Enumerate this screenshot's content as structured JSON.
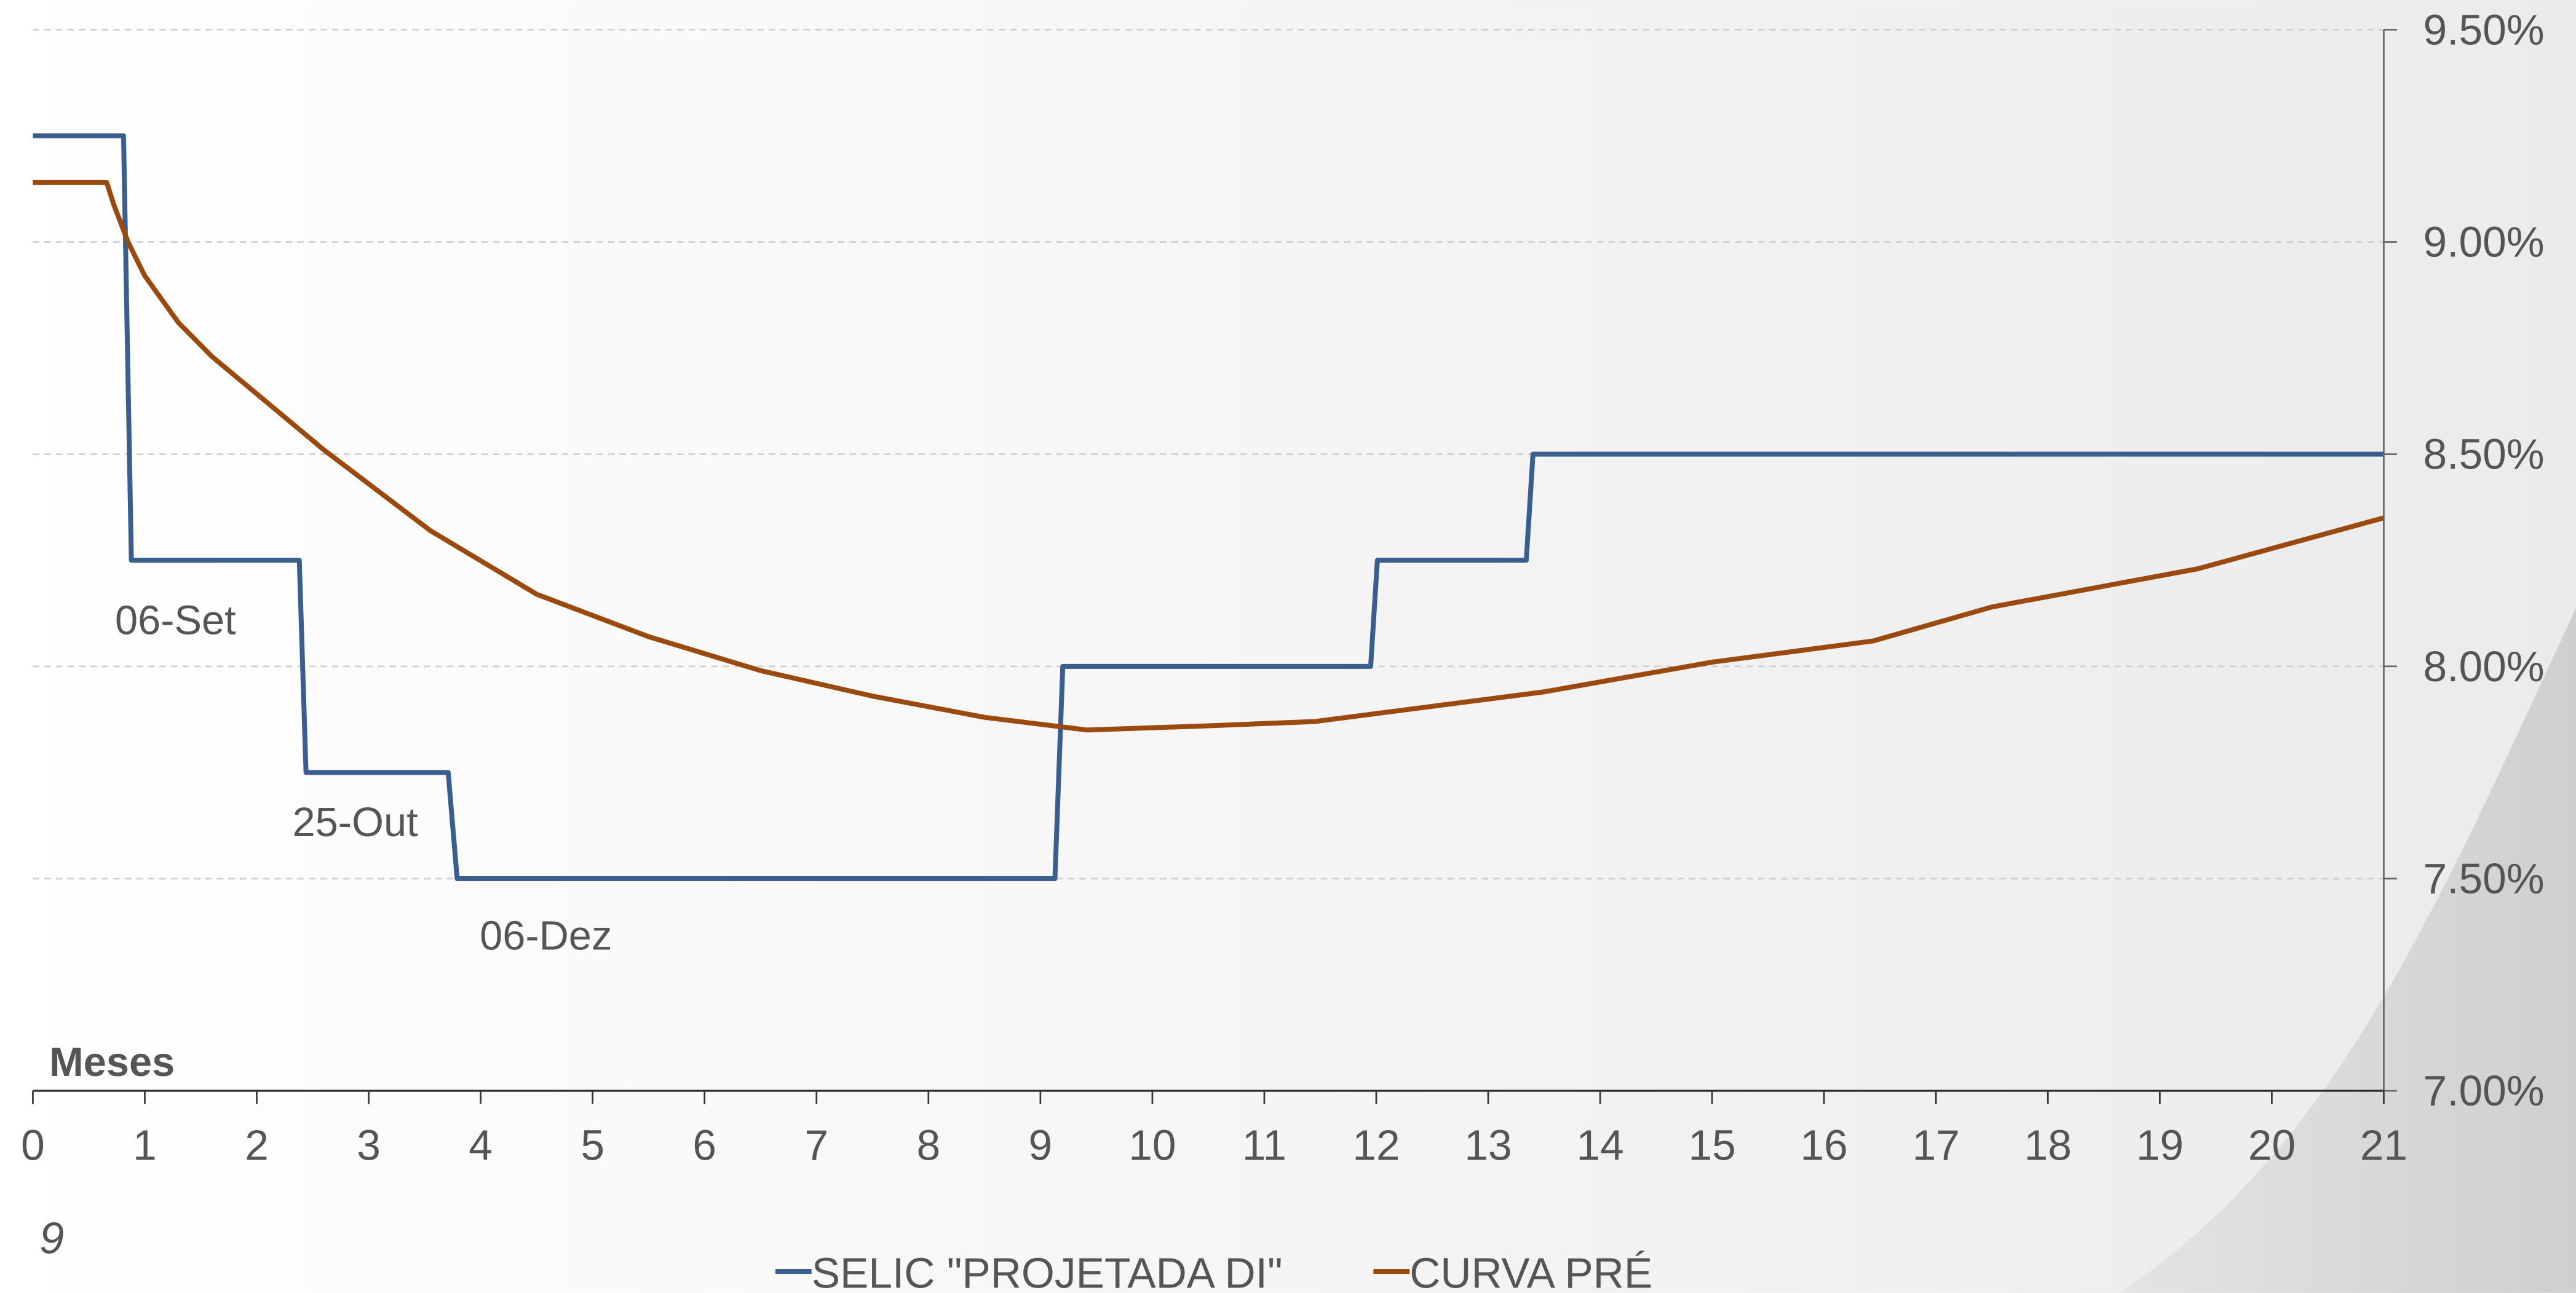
{
  "chart_data": {
    "type": "line",
    "x_label": "Meses",
    "page_number": "9",
    "annotations": [
      "06-Set",
      "25-Out",
      "06-Dez"
    ],
    "xlim": [
      0,
      21
    ],
    "xticks": [
      0,
      1,
      2,
      3,
      4,
      5,
      6,
      7,
      8,
      9,
      10,
      11,
      12,
      13,
      14,
      15,
      16,
      17,
      18,
      19,
      20,
      21
    ],
    "ylim": [
      7.0,
      9.5
    ],
    "yticks": [
      {
        "value": 7.0,
        "label": "7.00%"
      },
      {
        "value": 7.5,
        "label": "7.50%"
      },
      {
        "value": 8.0,
        "label": "8.00%"
      },
      {
        "value": 8.5,
        "label": "8.50%"
      },
      {
        "value": 9.0,
        "label": "9.00%"
      },
      {
        "value": 9.5,
        "label": "9.50%"
      }
    ],
    "y_axis_side": "right",
    "grid": true,
    "legend_position": "bottom",
    "series": [
      {
        "name": "SELIC \"PROJETADA DI\"",
        "color": "#3a5f8f",
        "x": [
          0,
          0.81,
          0.88,
          2.38,
          2.44,
          3.71,
          3.79,
          9.13,
          9.2,
          11.95,
          12.01,
          13.34,
          13.4,
          21
        ],
        "values": [
          9.25,
          9.25,
          8.25,
          8.25,
          7.75,
          7.75,
          7.5,
          7.5,
          8.0,
          8.0,
          8.25,
          8.25,
          8.5,
          8.5
        ]
      },
      {
        "name": "CURVA PRÉ",
        "color": "#9a4a0e",
        "x": [
          0,
          0.66,
          0.72,
          0.85,
          1.0,
          1.3,
          1.6,
          2.6,
          3.55,
          4.5,
          5.5,
          6.5,
          7.5,
          8.5,
          9.42,
          10.5,
          11.45,
          13.5,
          15,
          16.44,
          17.5,
          19.34,
          21
        ],
        "values": [
          9.14,
          9.14,
          9.09,
          9.0,
          8.92,
          8.81,
          8.73,
          8.51,
          8.32,
          8.17,
          8.07,
          7.99,
          7.93,
          7.88,
          7.85,
          7.86,
          7.87,
          7.94,
          8.01,
          8.06,
          8.14,
          8.23,
          8.35
        ]
      }
    ]
  }
}
